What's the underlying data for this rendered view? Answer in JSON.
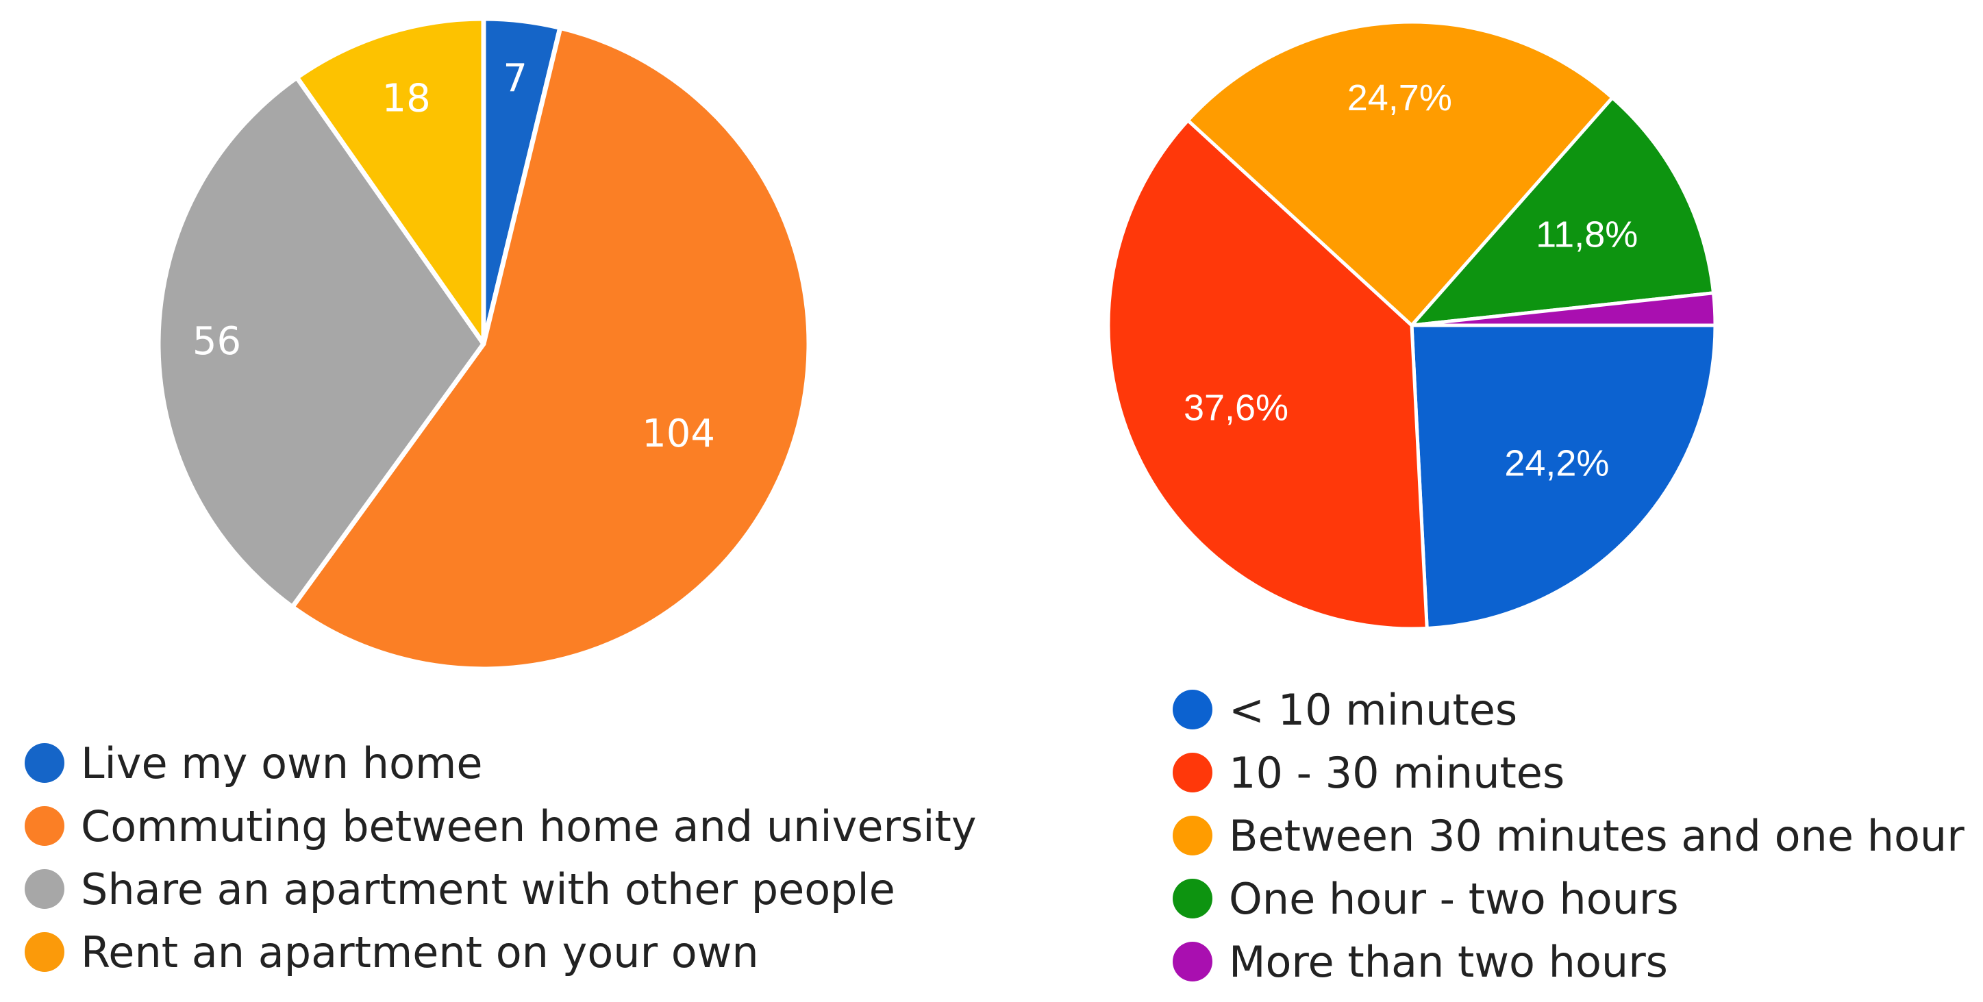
{
  "chart_data": [
    {
      "type": "pie",
      "labels": [
        "Live my own home",
        "Commuting between home and university",
        "Share an apartment with other people",
        "Rent an apartment on your own"
      ],
      "values": [
        7,
        104,
        56,
        18
      ],
      "slice_labels": [
        "7",
        "104",
        "56",
        "18"
      ],
      "colors": [
        "#1565c8",
        "#fb7f25",
        "#a7a7a7",
        "#fdc200"
      ],
      "legend_colors": [
        "#1565c8",
        "#fb7f25",
        "#a7a7a7",
        "#fb9a0a"
      ],
      "legend": "bottom-left"
    },
    {
      "type": "pie",
      "labels": [
        "< 10 minutes",
        "10 - 30 minutes",
        "Between 30 minutes and one hour",
        "One hour - two hours",
        "More than two hours"
      ],
      "values": [
        24.2,
        37.6,
        24.7,
        11.8,
        1.7
      ],
      "slice_labels": [
        "24,2%",
        "37,6%",
        "24,7%",
        "11,8%",
        ""
      ],
      "colors": [
        "#0c62d0",
        "#ff380a",
        "#ff9c00",
        "#0d9410",
        "#a90fb0"
      ],
      "legend": "bottom"
    }
  ]
}
